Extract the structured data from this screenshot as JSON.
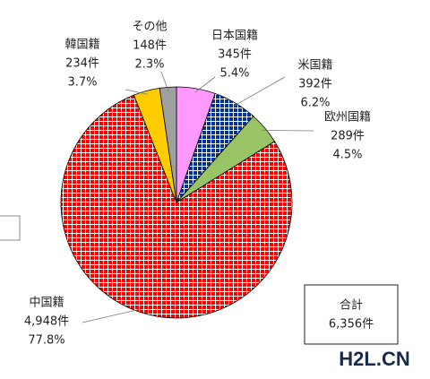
{
  "chart_data": {
    "type": "pie",
    "categories": [
      "日本国籍",
      "米国籍",
      "欧州国籍",
      "中国籍",
      "韓国籍",
      "その他"
    ],
    "values": [
      345,
      392,
      289,
      4948,
      234,
      148
    ],
    "value_labels": [
      "345件",
      "392件",
      "289件",
      "4,948件",
      "234件",
      "148件"
    ],
    "percents": [
      5.4,
      6.2,
      4.5,
      77.8,
      3.7,
      2.3
    ],
    "percent_labels": [
      "5.4%",
      "6.2%",
      "4.5%",
      "77.8%",
      "3.7%",
      "2.3%"
    ],
    "colors": [
      "#ff99ff",
      "#003399",
      "#99c466",
      "#ff0000",
      "#ffcc00",
      "#a0a0a0"
    ],
    "hatch": [
      false,
      true,
      false,
      true,
      false,
      false
    ],
    "total": {
      "label": "合計",
      "value": 6356,
      "value_label": "6,356件"
    },
    "watermark": "H2L.CN"
  }
}
